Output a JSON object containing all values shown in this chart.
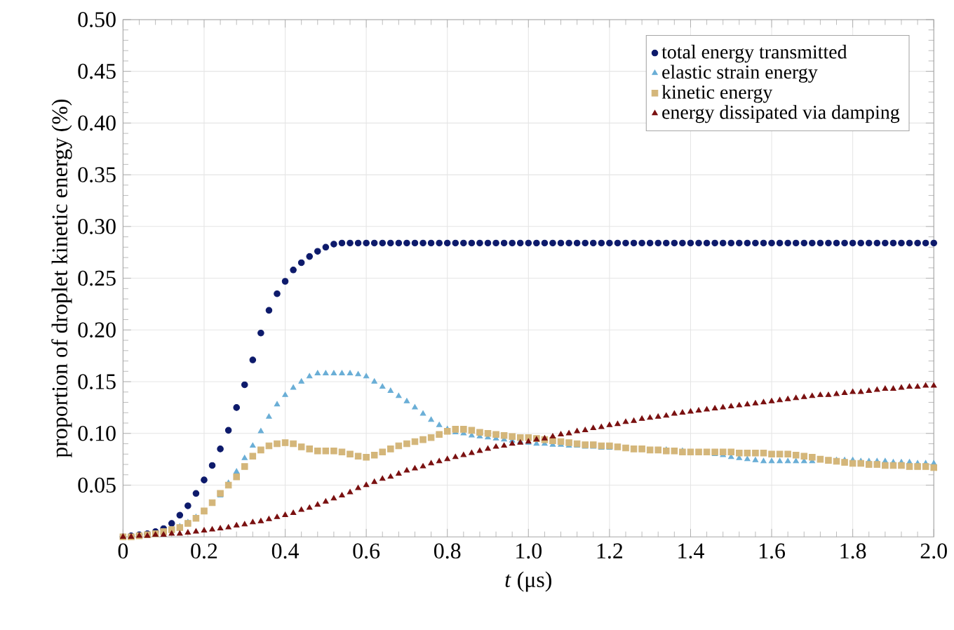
{
  "chart_data": {
    "type": "scatter",
    "xlabel": "*t* (μs)",
    "ylabel": "proportion of droplet kinetic energy (%)",
    "x": [
      0,
      0.02,
      0.04,
      0.06,
      0.08,
      0.1,
      0.12,
      0.14,
      0.16,
      0.18,
      0.2,
      0.22,
      0.24,
      0.26,
      0.28,
      0.3,
      0.32,
      0.34,
      0.36,
      0.38,
      0.4,
      0.42,
      0.44,
      0.46,
      0.48,
      0.5,
      0.52,
      0.54,
      0.56,
      0.58,
      0.6,
      0.62,
      0.64,
      0.66,
      0.68,
      0.7,
      0.72,
      0.74,
      0.76,
      0.78,
      0.8,
      0.82,
      0.84,
      0.86,
      0.88,
      0.9,
      0.92,
      0.94,
      0.96,
      0.98,
      1.0,
      1.02,
      1.04,
      1.06,
      1.08,
      1.1,
      1.12,
      1.14,
      1.16,
      1.18,
      1.2,
      1.22,
      1.24,
      1.26,
      1.28,
      1.3,
      1.32,
      1.34,
      1.36,
      1.38,
      1.4,
      1.42,
      1.44,
      1.46,
      1.48,
      1.5,
      1.52,
      1.54,
      1.56,
      1.58,
      1.6,
      1.62,
      1.64,
      1.66,
      1.68,
      1.7,
      1.72,
      1.74,
      1.76,
      1.78,
      1.8,
      1.82,
      1.84,
      1.86,
      1.88,
      1.9,
      1.92,
      1.94,
      1.96,
      1.98,
      2.0
    ],
    "series": [
      {
        "name": "total energy transmitted",
        "color": "#0d1a6b",
        "marker": "circle",
        "values": [
          0,
          0.001,
          0.002,
          0.003,
          0.005,
          0.008,
          0.013,
          0.021,
          0.03,
          0.042,
          0.055,
          0.069,
          0.085,
          0.103,
          0.125,
          0.147,
          0.171,
          0.197,
          0.219,
          0.235,
          0.247,
          0.258,
          0.265,
          0.271,
          0.276,
          0.28,
          0.283,
          0.284,
          0.284,
          0.284,
          0.284,
          0.284,
          0.284,
          0.284,
          0.284,
          0.284,
          0.284,
          0.284,
          0.284,
          0.284,
          0.284,
          0.284,
          0.284,
          0.284,
          0.284,
          0.284,
          0.284,
          0.284,
          0.284,
          0.284,
          0.284,
          0.284,
          0.284,
          0.284,
          0.284,
          0.284,
          0.284,
          0.284,
          0.284,
          0.284,
          0.284,
          0.284,
          0.284,
          0.284,
          0.284,
          0.284,
          0.284,
          0.284,
          0.284,
          0.284,
          0.284,
          0.284,
          0.284,
          0.284,
          0.284,
          0.284,
          0.284,
          0.284,
          0.284,
          0.284,
          0.284,
          0.284,
          0.284,
          0.284,
          0.284,
          0.284,
          0.284,
          0.284,
          0.284,
          0.284,
          0.284,
          0.284,
          0.284,
          0.284,
          0.284,
          0.284,
          0.284,
          0.284,
          0.284,
          0.284,
          0.284
        ]
      },
      {
        "name": "elastic strain energy",
        "color": "#6aaed6",
        "marker": "triangle",
        "values": [
          null,
          null,
          null,
          null,
          null,
          0.005,
          0.007,
          0.01,
          0.014,
          0.019,
          null,
          null,
          0.04,
          0.052,
          0.063,
          0.076,
          0.088,
          0.102,
          0.116,
          0.128,
          0.137,
          0.144,
          0.15,
          0.155,
          0.158,
          0.158,
          0.158,
          0.158,
          0.158,
          0.157,
          0.155,
          0.15,
          0.145,
          0.141,
          0.136,
          0.131,
          0.125,
          0.119,
          0.113,
          0.108,
          0.104,
          0.101,
          0.1,
          0.098,
          0.097,
          0.096,
          0.095,
          0.094,
          0.093,
          0.092,
          0.091,
          0.09,
          0.09,
          0.089,
          0.089,
          0.088,
          0.088,
          0.087,
          0.087,
          0.086,
          0.086,
          null,
          null,
          null,
          null,
          null,
          null,
          0.084,
          null,
          0.083,
          null,
          null,
          null,
          0.08,
          0.079,
          0.077,
          0.076,
          0.075,
          0.074,
          0.073,
          0.073,
          0.073,
          0.073,
          0.073,
          0.073,
          0.073,
          null,
          null,
          0.074,
          0.074,
          0.074,
          0.073,
          0.073,
          0.073,
          0.073,
          0.072,
          0.072,
          0.072,
          0.071,
          0.071,
          0.071
        ]
      },
      {
        "name": "kinetic energy",
        "color": "#d4b67a",
        "marker": "square",
        "values": [
          0,
          0,
          0.001,
          0.002,
          0.003,
          0.005,
          0.007,
          0.009,
          0.013,
          0.018,
          0.025,
          0.033,
          0.042,
          0.05,
          0.058,
          0.068,
          0.078,
          0.084,
          0.088,
          0.09,
          0.091,
          0.09,
          0.087,
          0.085,
          0.083,
          0.083,
          0.083,
          0.082,
          0.08,
          0.078,
          0.077,
          0.079,
          0.082,
          0.085,
          0.088,
          0.09,
          0.092,
          0.094,
          0.096,
          0.099,
          0.102,
          0.104,
          0.104,
          0.103,
          0.101,
          0.1,
          0.099,
          0.098,
          0.097,
          0.096,
          0.096,
          0.095,
          0.094,
          0.093,
          0.092,
          0.091,
          0.09,
          0.089,
          0.089,
          0.088,
          0.088,
          0.087,
          0.086,
          0.085,
          0.085,
          0.084,
          0.084,
          0.083,
          0.083,
          0.082,
          0.082,
          0.082,
          0.082,
          0.082,
          0.082,
          0.082,
          0.081,
          0.081,
          0.081,
          0.081,
          0.08,
          0.08,
          0.08,
          0.079,
          0.078,
          0.077,
          0.075,
          0.074,
          0.073,
          0.072,
          0.071,
          0.071,
          0.07,
          0.07,
          0.069,
          0.069,
          0.069,
          0.068,
          0.068,
          0.068,
          0.067
        ]
      },
      {
        "name": "energy dissipated via damping",
        "color": "#7a1010",
        "marker": "triangle",
        "values": [
          0,
          0,
          0.001,
          0.001,
          0.002,
          0.002,
          0.003,
          0.003,
          0.004,
          0.005,
          0.006,
          0.007,
          0.008,
          0.009,
          0.011,
          0.012,
          0.014,
          0.015,
          0.017,
          0.019,
          0.021,
          0.023,
          0.026,
          0.028,
          0.031,
          0.034,
          0.037,
          0.04,
          0.043,
          0.047,
          0.05,
          0.053,
          0.056,
          0.058,
          0.061,
          0.064,
          0.066,
          0.068,
          0.071,
          0.073,
          0.075,
          0.077,
          0.079,
          0.081,
          0.083,
          0.085,
          0.087,
          0.088,
          0.09,
          0.091,
          0.092,
          0.094,
          0.095,
          0.097,
          0.099,
          0.1,
          0.102,
          0.103,
          0.105,
          0.106,
          0.108,
          0.109,
          0.111,
          0.112,
          0.114,
          0.115,
          0.116,
          0.117,
          0.119,
          0.12,
          0.121,
          0.122,
          0.123,
          0.124,
          0.125,
          0.126,
          0.127,
          0.128,
          0.129,
          0.13,
          0.131,
          0.132,
          0.133,
          0.134,
          0.135,
          0.136,
          0.137,
          0.137,
          0.138,
          0.139,
          0.14,
          0.14,
          0.141,
          0.142,
          0.143,
          0.143,
          0.144,
          0.145,
          0.145,
          0.146,
          0.146
        ]
      }
    ],
    "xlim": [
      0,
      2.0
    ],
    "ylim": [
      0,
      0.5
    ],
    "xticks": [
      0,
      0.2,
      0.4,
      0.6,
      0.8,
      {
        "value": 1,
        "label": "1.0"
      },
      1.2,
      1.4,
      1.6,
      1.8,
      {
        "value": 2,
        "label": "2.0"
      }
    ],
    "yticks": [
      0.05,
      {
        "value": 0.1,
        "label": "0.10"
      },
      0.15,
      {
        "value": 0.2,
        "label": "0.20"
      },
      0.25,
      {
        "value": 0.3,
        "label": "0.30"
      },
      0.35,
      {
        "value": 0.4,
        "label": "0.40"
      },
      0.45,
      {
        "value": 0.5,
        "label": "0.50"
      }
    ],
    "grid": true,
    "legend": "top right"
  }
}
